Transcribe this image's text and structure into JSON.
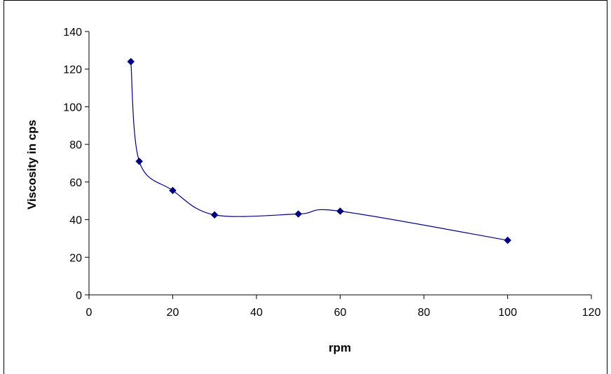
{
  "chart_data": {
    "type": "scatter",
    "title": "",
    "xlabel": "rpm",
    "ylabel": "Viscosity in cps",
    "xlim": [
      0,
      120
    ],
    "ylim": [
      0,
      140
    ],
    "xticks": [
      0,
      20,
      40,
      60,
      80,
      100,
      120
    ],
    "yticks": [
      0,
      20,
      40,
      60,
      80,
      100,
      120,
      140
    ],
    "grid": false,
    "legend": "none",
    "series": [
      {
        "x": [
          10,
          12,
          20,
          30,
          50,
          60,
          100
        ],
        "y": [
          124,
          71,
          55.5,
          42.5,
          43,
          44.5,
          29
        ],
        "color": "#000080",
        "marker": "diamond",
        "line": "smoothed"
      }
    ]
  }
}
